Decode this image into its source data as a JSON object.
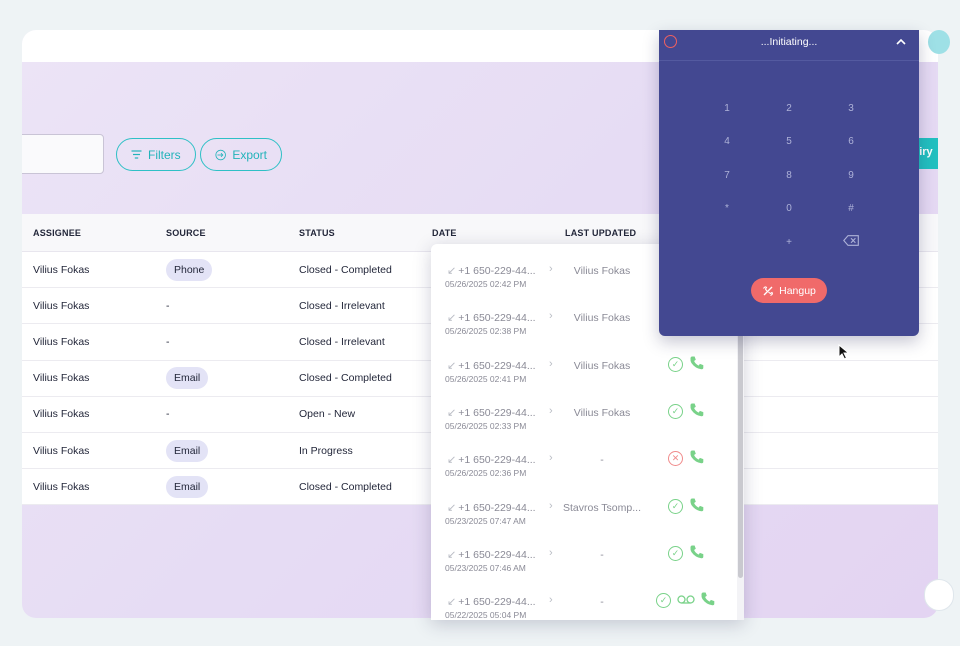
{
  "toolbar": {
    "filters_label": "Filters",
    "export_label": "Export",
    "enquiry_label": "Inquiry"
  },
  "table": {
    "headers": [
      "ASSIGNEE",
      "SOURCE",
      "STATUS",
      "DATE",
      "LAST UPDATED"
    ],
    "rows": [
      {
        "assignee": "Vilius Fokas",
        "source": "Phone",
        "status": "Closed - Completed"
      },
      {
        "assignee": "Vilius Fokas",
        "source": "-",
        "status": "Closed - Irrelevant"
      },
      {
        "assignee": "Vilius Fokas",
        "source": "-",
        "status": "Closed - Irrelevant"
      },
      {
        "assignee": "Vilius Fokas",
        "source": "Email",
        "status": "Closed - Completed"
      },
      {
        "assignee": "Vilius Fokas",
        "source": "-",
        "status": "Open - New"
      },
      {
        "assignee": "Vilius Fokas",
        "source": "Email",
        "status": "In Progress"
      },
      {
        "assignee": "Vilius Fokas",
        "source": "Email",
        "status": "Closed - Completed"
      }
    ]
  },
  "call_log": {
    "items": [
      {
        "number": "+1 650-229-44...",
        "date": "05/26/2025 02:42 PM",
        "agent": "Vilius Fokas",
        "status": "success",
        "voicemail": false
      },
      {
        "number": "+1 650-229-44...",
        "date": "05/26/2025 02:38 PM",
        "agent": "Vilius Fokas",
        "status": "success",
        "voicemail": false
      },
      {
        "number": "+1 650-229-44...",
        "date": "05/26/2025 02:41 PM",
        "agent": "Vilius Fokas",
        "status": "success",
        "voicemail": false
      },
      {
        "number": "+1 650-229-44...",
        "date": "05/26/2025 02:33 PM",
        "agent": "Vilius Fokas",
        "status": "success",
        "voicemail": false
      },
      {
        "number": "+1 650-229-44...",
        "date": "05/26/2025 02:36 PM",
        "agent": "-",
        "status": "failed",
        "voicemail": false
      },
      {
        "number": "+1 650-229-44...",
        "date": "05/23/2025 07:47 AM",
        "agent": "Stavros Tsomp...",
        "status": "success",
        "voicemail": false
      },
      {
        "number": "+1 650-229-44...",
        "date": "05/23/2025 07:46 AM",
        "agent": "-",
        "status": "success",
        "voicemail": false
      },
      {
        "number": "+1 650-229-44...",
        "date": "05/22/2025 05:04 PM",
        "agent": "-",
        "status": "success",
        "voicemail": true
      }
    ]
  },
  "dialer": {
    "title": "...Initiating...",
    "keys": [
      "1",
      "2",
      "3",
      "4",
      "5",
      "6",
      "7",
      "8",
      "9",
      "*",
      "0",
      "#",
      "+"
    ],
    "hangup_label": "Hangup"
  },
  "colors": {
    "accent": "#2fc0c6",
    "dialer_bg": "#434891",
    "hangup": "#f06a6a",
    "success": "#79d289",
    "error": "#f08b8b"
  }
}
